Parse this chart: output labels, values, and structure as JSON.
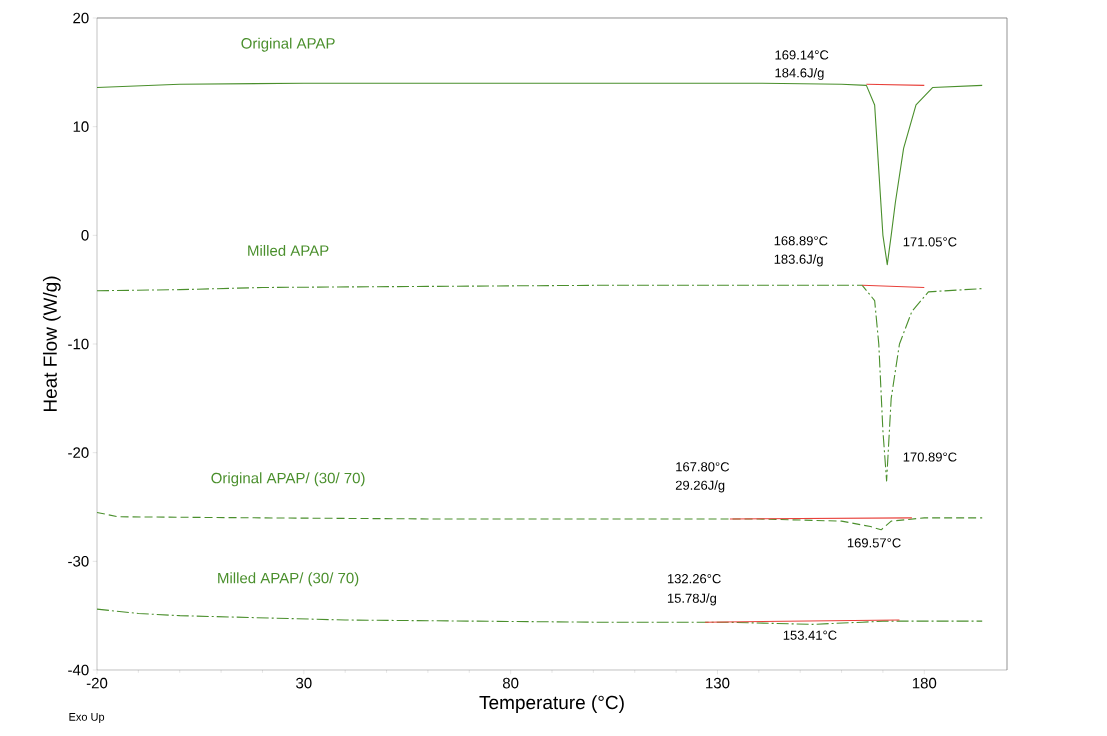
{
  "chart_data": {
    "type": "line",
    "xlabel": "Temperature (°C)",
    "ylabel": "Heat Flow (W/g)",
    "xlim": [
      -20,
      200
    ],
    "xticks": [
      -20,
      30,
      80,
      130,
      180
    ],
    "ylim": [
      -40,
      20
    ],
    "yticks": [
      -40,
      -30,
      -20,
      -10,
      0,
      10,
      20
    ],
    "series": [
      {
        "name": "Original APAP",
        "color": "#4a8f2c",
        "line_style": "solid",
        "x": [
          -20,
          0,
          30,
          60,
          100,
          140,
          160,
          166,
          168,
          169,
          170,
          171.05,
          172,
          173,
          175,
          178,
          182,
          194
        ],
        "values": [
          13.6,
          13.9,
          14.0,
          14.0,
          14.0,
          14.0,
          13.9,
          13.8,
          12,
          6,
          0,
          -2.7,
          0,
          3,
          8,
          12,
          13.6,
          13.8
        ]
      },
      {
        "name": "Milled APAP",
        "color": "#4a8f2c",
        "line_style": "dashdot",
        "x": [
          -20,
          0,
          20,
          60,
          100,
          140,
          165,
          168,
          169,
          170,
          170.89,
          172,
          174,
          177,
          181,
          194
        ],
        "values": [
          -5.1,
          -5.0,
          -4.8,
          -4.7,
          -4.6,
          -4.6,
          -4.6,
          -6,
          -10,
          -18,
          -22.6,
          -15,
          -10,
          -7,
          -5.2,
          -4.9
        ]
      },
      {
        "name": "Original APAP/ (30/ 70)",
        "color": "#4a8f2c",
        "line_style": "dashed",
        "x": [
          -20,
          -15,
          20,
          60,
          100,
          140,
          160,
          167,
          169.57,
          172,
          180,
          194
        ],
        "values": [
          -25.5,
          -25.9,
          -26.0,
          -26.1,
          -26.1,
          -26.1,
          -26.3,
          -26.8,
          -27.1,
          -26.3,
          -26.0,
          -26.0
        ]
      },
      {
        "name": "Milled APAP/ (30/ 70)",
        "color": "#4a8f2c",
        "line_style": "dashdot",
        "x": [
          -20,
          -10,
          0,
          20,
          40,
          70,
          100,
          132,
          153,
          165,
          170,
          194
        ],
        "values": [
          -34.4,
          -34.8,
          -35.0,
          -35.2,
          -35.4,
          -35.5,
          -35.6,
          -35.6,
          -35.8,
          -35.6,
          -35.5,
          -35.5
        ]
      },
      {
        "color": "#e8403a",
        "line_style": "solid",
        "x": [
          166,
          180
        ],
        "values": [
          13.9,
          13.8
        ]
      },
      {
        "color": "#e8403a",
        "line_style": "solid",
        "x": [
          165,
          180
        ],
        "values": [
          -4.6,
          -4.8
        ]
      },
      {
        "color": "#e8403a",
        "line_style": "solid",
        "x": [
          133,
          177
        ],
        "values": [
          -26.1,
          -26.0
        ]
      },
      {
        "color": "#e8403a",
        "line_style": "solid",
        "x": [
          127,
          174
        ],
        "values": [
          -35.6,
          -35.4
        ]
      }
    ],
    "annotations": [
      "169.14°C",
      "184.6J/g",
      "171.05°C",
      "168.89°C",
      "183.6J/g",
      "170.89°C",
      "167.80°C",
      "29.26J/g",
      "169.57°C",
      "132.26°C",
      "15.78J/g",
      "153.41°C",
      "Exo Up"
    ]
  }
}
